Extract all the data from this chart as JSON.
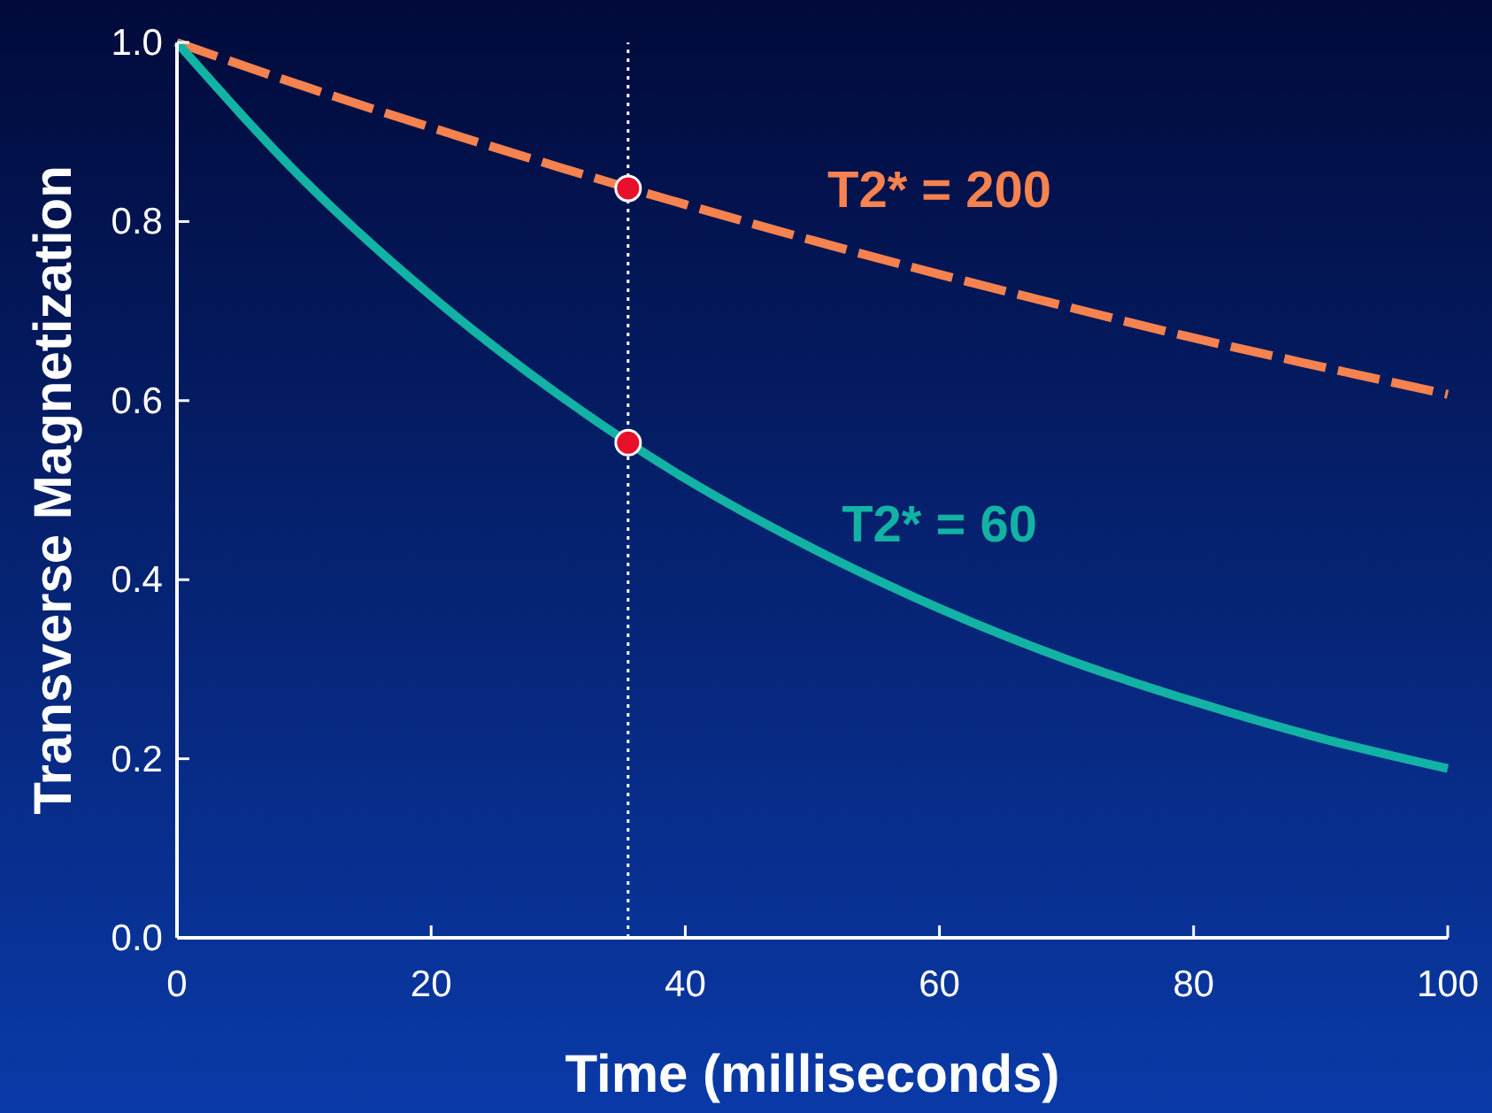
{
  "chart_data": {
    "type": "line",
    "xlabel": "Time (milliseconds)",
    "ylabel": "Transverse Magnetization",
    "x": [
      0,
      10,
      20,
      30,
      40,
      50,
      60,
      70,
      80,
      90,
      100
    ],
    "xlim": [
      0,
      100
    ],
    "xticks": [
      0,
      20,
      40,
      60,
      80,
      100
    ],
    "ylim": [
      0,
      1
    ],
    "yticks": [
      {
        "value": 0,
        "label": "0.0"
      },
      0.2,
      0.4,
      0.6,
      0.8,
      {
        "value": 1,
        "label": "1.0"
      }
    ],
    "grid": false,
    "series": [
      {
        "name": "T2* = 200",
        "color": "#f5824f",
        "line_style": "dashed",
        "values": [
          1,
          0.951,
          0.905,
          0.861,
          0.819,
          0.779,
          0.741,
          0.705,
          0.67,
          0.638,
          0.607
        ]
      },
      {
        "name": "T2* = 60",
        "color": "#12b2a4",
        "line_style": "solid",
        "values": [
          1,
          0.846,
          0.717,
          0.607,
          0.513,
          0.435,
          0.368,
          0.311,
          0.264,
          0.223,
          0.189
        ]
      },
      {
        "type": "scatter",
        "color": "#e8102a",
        "marker": "circle",
        "x": [
          35.5,
          35.5
        ],
        "values": [
          0.837,
          0.553
        ]
      }
    ],
    "ref_lines": [
      {
        "axis": "x",
        "value": 35.5,
        "color": "#ffffff",
        "line_style": "dotted"
      }
    ]
  }
}
